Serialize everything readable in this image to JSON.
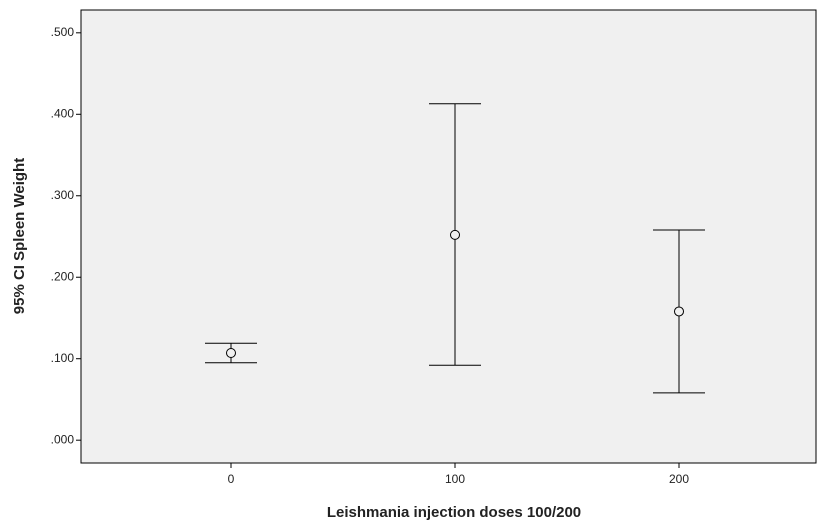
{
  "chart_data": {
    "type": "errorbar",
    "x_label": "Leishmania injection doses 100/200",
    "y_label": "95% CI Spleen Weight",
    "categories": [
      "0",
      "100",
      "200"
    ],
    "values": [
      0.107,
      0.252,
      0.158
    ],
    "lower": [
      0.095,
      0.092,
      0.058
    ],
    "upper": [
      0.119,
      0.413,
      0.258
    ],
    "color": "#000000",
    "background": "#f0f0f0",
    "ylim": [
      -0.028,
      0.528
    ],
    "yticks": [
      {
        "value": 0,
        "label": ".000"
      },
      {
        "value": 0.1,
        "label": ".100"
      },
      {
        "value": 0.2,
        "label": ".200"
      },
      {
        "value": 0.3,
        "label": ".300"
      },
      {
        "value": 0.4,
        "label": ".400"
      },
      {
        "value": 0.5,
        "label": ".500"
      }
    ],
    "grid": false
  }
}
